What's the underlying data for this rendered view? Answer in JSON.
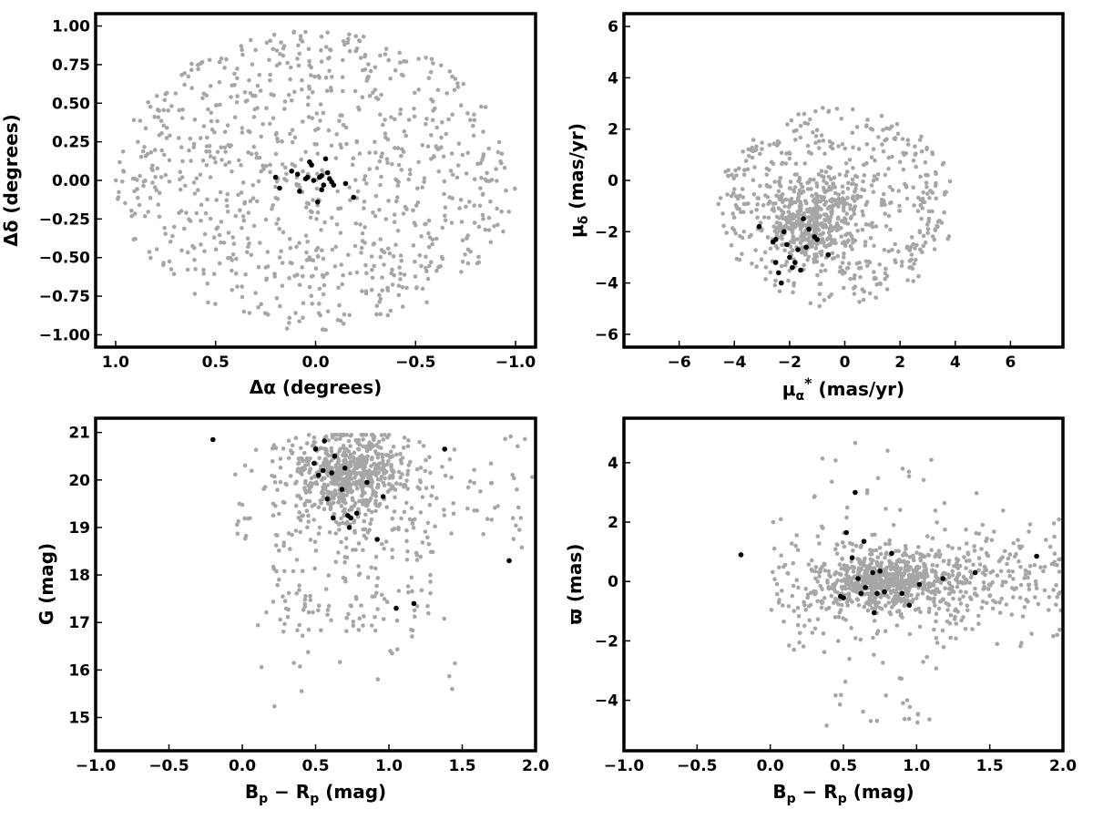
{
  "figure": {
    "colors": {
      "field": "#a6a6a6",
      "members": "#000000",
      "frame": "#000000"
    }
  },
  "chart_data": [
    {
      "id": "sky",
      "type": "scatter",
      "xlabel": "Δα (degrees)",
      "ylabel": "Δδ (degrees)",
      "xlim": [
        1.1,
        -1.1
      ],
      "ylim": [
        -1.08,
        1.08
      ],
      "x_reversed": true,
      "xticks": [
        1.0,
        0.5,
        0.0,
        -0.5,
        -1.0
      ],
      "xtick_labels": [
        "1.0",
        "0.5",
        "0.0",
        "−0.5",
        "−1.0"
      ],
      "yticks": [
        -1.0,
        -0.75,
        -0.5,
        -0.25,
        0.0,
        0.25,
        0.5,
        0.75,
        1.0
      ],
      "ytick_labels": [
        "−1.00",
        "−0.75",
        "−0.50",
        "−0.25",
        "0.00",
        "0.25",
        "0.50",
        "0.75",
        "1.00"
      ],
      "grid": false,
      "field_region": {
        "shape": "disk",
        "center": [
          0,
          0
        ],
        "rx": 1.0,
        "ry": 0.97
      },
      "field_count": 900,
      "members": [
        [
          0.2,
          0.02
        ],
        [
          0.18,
          -0.05
        ],
        [
          0.12,
          0.06
        ],
        [
          0.09,
          0.04
        ],
        [
          0.08,
          -0.07
        ],
        [
          0.05,
          0.01
        ],
        [
          0.03,
          0.12
        ],
        [
          0.02,
          0.1
        ],
        [
          0.01,
          0.0
        ],
        [
          -0.01,
          -0.14
        ],
        [
          -0.02,
          0.02
        ],
        [
          -0.03,
          0.03
        ],
        [
          -0.04,
          -0.03
        ],
        [
          -0.05,
          0.14
        ],
        [
          -0.03,
          -0.06
        ],
        [
          -0.07,
          0.01
        ],
        [
          -0.08,
          -0.01
        ],
        [
          -0.09,
          -0.03
        ],
        [
          -0.15,
          -0.02
        ],
        [
          -0.19,
          -0.11
        ],
        [
          0.04,
          0.02
        ],
        [
          -0.06,
          0.05
        ]
      ]
    },
    {
      "id": "proper-motion",
      "type": "scatter",
      "xlabel": "μα* (mas/yr)",
      "ylabel": "μδ (mas/yr)",
      "xlim": [
        -8,
        7.9
      ],
      "ylim": [
        -6.5,
        6.5
      ],
      "xticks": [
        -6,
        -4,
        -2,
        0,
        2,
        4,
        6
      ],
      "xtick_labels": [
        "−6",
        "−4",
        "−2",
        "0",
        "2",
        "4",
        "6"
      ],
      "yticks": [
        -6,
        -4,
        -2,
        0,
        2,
        4,
        6
      ],
      "ytick_labels": [
        "−6",
        "−4",
        "−2",
        "0",
        "2",
        "4",
        "6"
      ],
      "grid": false,
      "field_region": {
        "shape": "disk",
        "center": [
          -0.3,
          -1.0
        ],
        "rx": 4.3,
        "ry": 3.9,
        "core": [
          -1.2,
          -1.6
        ]
      },
      "field_count": 900,
      "members": [
        [
          -3.1,
          -1.8
        ],
        [
          -2.5,
          -2.3
        ],
        [
          -2.4,
          -3.6
        ],
        [
          -2.3,
          -4.0
        ],
        [
          -2.2,
          -2.0
        ],
        [
          -2.1,
          -2.5
        ],
        [
          -1.9,
          -3.4
        ],
        [
          -1.8,
          -3.2
        ],
        [
          -1.7,
          -2.7
        ],
        [
          -1.6,
          -3.5
        ],
        [
          -1.5,
          -1.5
        ],
        [
          -1.4,
          -2.6
        ],
        [
          -1.1,
          -2.2
        ],
        [
          -2.0,
          -3.0
        ],
        [
          -0.6,
          -2.9
        ],
        [
          -2.6,
          -2.4
        ],
        [
          -1.3,
          -1.9
        ],
        [
          -2.5,
          -3.2
        ],
        [
          -1.0,
          -2.3
        ]
      ]
    },
    {
      "id": "cmd",
      "type": "scatter",
      "xlabel": "Bp − Rp (mag)",
      "ylabel": "G (mag)",
      "xlim": [
        -1.0,
        2.0
      ],
      "ylim": [
        14.3,
        21.3
      ],
      "y_reversed": false,
      "xticks": [
        -1.0,
        -0.5,
        0.0,
        0.5,
        1.0,
        1.5,
        2.0
      ],
      "xtick_labels": [
        "−1.0",
        "−0.5",
        "0.0",
        "0.5",
        "1.0",
        "1.5",
        "2.0"
      ],
      "yticks": [
        15,
        16,
        17,
        18,
        19,
        20,
        21
      ],
      "ytick_labels": [
        "15",
        "16",
        "17",
        "18",
        "19",
        "20",
        "21"
      ],
      "grid": false,
      "field_region": {
        "shape": "cmd",
        "core": [
          0.7,
          20.2
        ]
      },
      "field_count": 900,
      "members": [
        [
          -0.2,
          20.85
        ],
        [
          0.5,
          20.65
        ],
        [
          0.56,
          20.82
        ],
        [
          0.49,
          20.35
        ],
        [
          0.52,
          20.1
        ],
        [
          0.55,
          20.2
        ],
        [
          0.61,
          20.15
        ],
        [
          0.63,
          20.5
        ],
        [
          0.7,
          20.25
        ],
        [
          0.58,
          19.6
        ],
        [
          0.62,
          19.2
        ],
        [
          0.68,
          19.8
        ],
        [
          0.72,
          19.25
        ],
        [
          0.74,
          19.2
        ],
        [
          0.73,
          19.0
        ],
        [
          0.78,
          19.3
        ],
        [
          0.85,
          19.95
        ],
        [
          0.92,
          18.75
        ],
        [
          0.96,
          19.65
        ],
        [
          1.05,
          17.3
        ],
        [
          1.17,
          17.4
        ],
        [
          1.38,
          20.65
        ],
        [
          1.82,
          18.3
        ]
      ]
    },
    {
      "id": "parallax",
      "type": "scatter",
      "xlabel": "Bp − Rp (mag)",
      "ylabel": "ϖ (mas)",
      "xlim": [
        -1.0,
        2.0
      ],
      "ylim": [
        -5.7,
        5.5
      ],
      "xticks": [
        -1.0,
        -0.5,
        0.0,
        0.5,
        1.0,
        1.5,
        2.0
      ],
      "xtick_labels": [
        "−1.0",
        "−0.5",
        "0.0",
        "0.5",
        "1.0",
        "1.5",
        "2.0"
      ],
      "yticks": [
        -4,
        -2,
        0,
        2,
        4
      ],
      "ytick_labels": [
        "−4",
        "−2",
        "0",
        "2",
        "4"
      ],
      "grid": false,
      "field_region": {
        "shape": "band",
        "core": [
          0.8,
          0.0
        ]
      },
      "field_count": 1000,
      "members": [
        [
          -0.2,
          0.9
        ],
        [
          0.48,
          -0.5
        ],
        [
          0.5,
          -0.55
        ],
        [
          0.52,
          1.65
        ],
        [
          0.56,
          0.8
        ],
        [
          0.58,
          3.0
        ],
        [
          0.6,
          0.1
        ],
        [
          0.62,
          -0.4
        ],
        [
          0.64,
          1.35
        ],
        [
          0.65,
          -0.2
        ],
        [
          0.7,
          0.3
        ],
        [
          0.71,
          -1.05
        ],
        [
          0.73,
          -0.4
        ],
        [
          0.75,
          0.35
        ],
        [
          0.78,
          -0.35
        ],
        [
          0.83,
          0.95
        ],
        [
          0.9,
          -0.4
        ],
        [
          0.95,
          -0.8
        ],
        [
          1.02,
          -0.1
        ],
        [
          1.18,
          0.1
        ],
        [
          1.4,
          0.3
        ],
        [
          1.82,
          0.85
        ]
      ]
    }
  ]
}
